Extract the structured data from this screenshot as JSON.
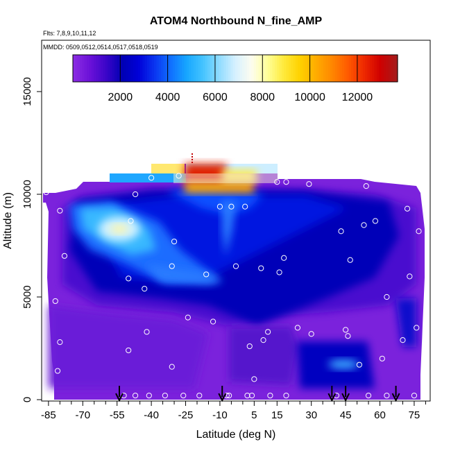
{
  "chart_data": {
    "type": "heatmap",
    "title": "ATOM4 Northbound N_fine_AMP",
    "subtitle_flights": "Flts: 7,8,9,10,11,12",
    "subtitle_dates": "MMDD: 0509,0512,0514,0517,0518,0519",
    "xlabel": "Latitude (deg N)",
    "ylabel": "Altitude (m)",
    "xlim": [
      -88,
      82
    ],
    "ylim": [
      0,
      17500
    ],
    "x_ticks": [
      -85,
      -70,
      -55,
      -40,
      -25,
      -10,
      5,
      15,
      30,
      45,
      60,
      75
    ],
    "x_minor_ticks": [
      -80,
      -75,
      -65,
      -60,
      -50,
      -45,
      -35,
      -30,
      -20,
      -15,
      -5,
      0,
      10,
      20,
      25,
      35,
      40,
      50,
      55,
      65,
      70,
      80
    ],
    "y_ticks": [
      0,
      5000,
      10000,
      15000
    ],
    "colorbar": {
      "range": [
        0,
        13700
      ],
      "ticks": [
        2000,
        4000,
        6000,
        8000,
        10000,
        12000
      ],
      "colors": [
        "#8a2be2",
        "#6a11d8",
        "#3b05c8",
        "#0000b4",
        "#0000d8",
        "#0a35f0",
        "#1070ff",
        "#17a7ff",
        "#45c4ff",
        "#8fdcff",
        "#d6f0ff",
        "#fdfdf0",
        "#ffff99",
        "#ffea3c",
        "#ffd200",
        "#ffad00",
        "#ff8700",
        "#ff5a00",
        "#ee2800",
        "#cf0000",
        "#a61b1b"
      ]
    },
    "arrows_latitude": [
      -54,
      -9,
      39,
      45,
      67
    ],
    "grid": false,
    "legend": "colorbar top"
  }
}
